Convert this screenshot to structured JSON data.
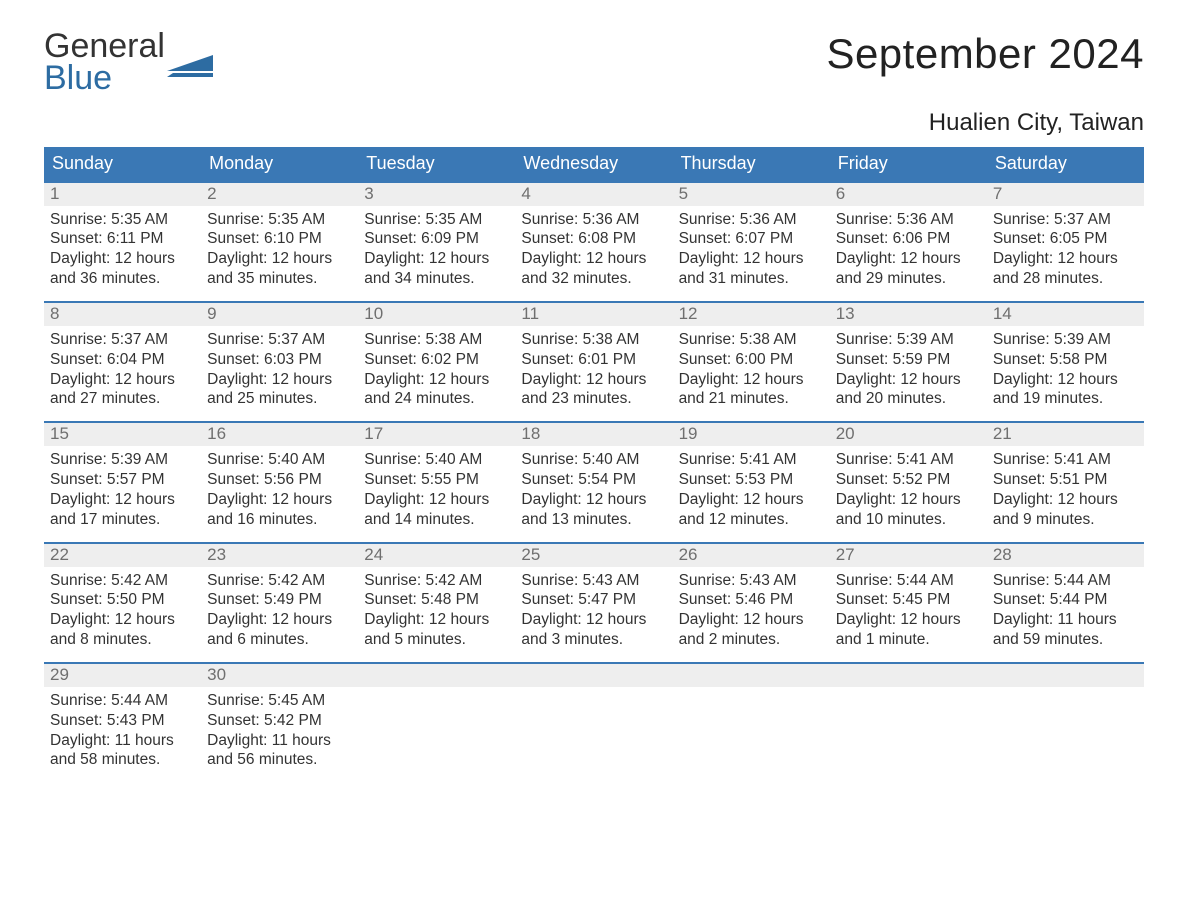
{
  "logo": {
    "line1": "General",
    "line2": "Blue",
    "accent_color": "#2d6ca2"
  },
  "title": "September 2024",
  "location": "Hualien City, Taiwan",
  "colors": {
    "header_bg": "#3a78b5",
    "header_text": "#ffffff",
    "daynum_bg": "#eeeeee",
    "daynum_text": "#6f6f6f",
    "body_text": "#333333",
    "row_border": "#3a78b5",
    "page_bg": "#ffffff"
  },
  "weekdays": [
    "Sunday",
    "Monday",
    "Tuesday",
    "Wednesday",
    "Thursday",
    "Friday",
    "Saturday"
  ],
  "weeks": [
    [
      {
        "n": "1",
        "sunrise": "Sunrise: 5:35 AM",
        "sunset": "Sunset: 6:11 PM",
        "d1": "Daylight: 12 hours",
        "d2": "and 36 minutes."
      },
      {
        "n": "2",
        "sunrise": "Sunrise: 5:35 AM",
        "sunset": "Sunset: 6:10 PM",
        "d1": "Daylight: 12 hours",
        "d2": "and 35 minutes."
      },
      {
        "n": "3",
        "sunrise": "Sunrise: 5:35 AM",
        "sunset": "Sunset: 6:09 PM",
        "d1": "Daylight: 12 hours",
        "d2": "and 34 minutes."
      },
      {
        "n": "4",
        "sunrise": "Sunrise: 5:36 AM",
        "sunset": "Sunset: 6:08 PM",
        "d1": "Daylight: 12 hours",
        "d2": "and 32 minutes."
      },
      {
        "n": "5",
        "sunrise": "Sunrise: 5:36 AM",
        "sunset": "Sunset: 6:07 PM",
        "d1": "Daylight: 12 hours",
        "d2": "and 31 minutes."
      },
      {
        "n": "6",
        "sunrise": "Sunrise: 5:36 AM",
        "sunset": "Sunset: 6:06 PM",
        "d1": "Daylight: 12 hours",
        "d2": "and 29 minutes."
      },
      {
        "n": "7",
        "sunrise": "Sunrise: 5:37 AM",
        "sunset": "Sunset: 6:05 PM",
        "d1": "Daylight: 12 hours",
        "d2": "and 28 minutes."
      }
    ],
    [
      {
        "n": "8",
        "sunrise": "Sunrise: 5:37 AM",
        "sunset": "Sunset: 6:04 PM",
        "d1": "Daylight: 12 hours",
        "d2": "and 27 minutes."
      },
      {
        "n": "9",
        "sunrise": "Sunrise: 5:37 AM",
        "sunset": "Sunset: 6:03 PM",
        "d1": "Daylight: 12 hours",
        "d2": "and 25 minutes."
      },
      {
        "n": "10",
        "sunrise": "Sunrise: 5:38 AM",
        "sunset": "Sunset: 6:02 PM",
        "d1": "Daylight: 12 hours",
        "d2": "and 24 minutes."
      },
      {
        "n": "11",
        "sunrise": "Sunrise: 5:38 AM",
        "sunset": "Sunset: 6:01 PM",
        "d1": "Daylight: 12 hours",
        "d2": "and 23 minutes."
      },
      {
        "n": "12",
        "sunrise": "Sunrise: 5:38 AM",
        "sunset": "Sunset: 6:00 PM",
        "d1": "Daylight: 12 hours",
        "d2": "and 21 minutes."
      },
      {
        "n": "13",
        "sunrise": "Sunrise: 5:39 AM",
        "sunset": "Sunset: 5:59 PM",
        "d1": "Daylight: 12 hours",
        "d2": "and 20 minutes."
      },
      {
        "n": "14",
        "sunrise": "Sunrise: 5:39 AM",
        "sunset": "Sunset: 5:58 PM",
        "d1": "Daylight: 12 hours",
        "d2": "and 19 minutes."
      }
    ],
    [
      {
        "n": "15",
        "sunrise": "Sunrise: 5:39 AM",
        "sunset": "Sunset: 5:57 PM",
        "d1": "Daylight: 12 hours",
        "d2": "and 17 minutes."
      },
      {
        "n": "16",
        "sunrise": "Sunrise: 5:40 AM",
        "sunset": "Sunset: 5:56 PM",
        "d1": "Daylight: 12 hours",
        "d2": "and 16 minutes."
      },
      {
        "n": "17",
        "sunrise": "Sunrise: 5:40 AM",
        "sunset": "Sunset: 5:55 PM",
        "d1": "Daylight: 12 hours",
        "d2": "and 14 minutes."
      },
      {
        "n": "18",
        "sunrise": "Sunrise: 5:40 AM",
        "sunset": "Sunset: 5:54 PM",
        "d1": "Daylight: 12 hours",
        "d2": "and 13 minutes."
      },
      {
        "n": "19",
        "sunrise": "Sunrise: 5:41 AM",
        "sunset": "Sunset: 5:53 PM",
        "d1": "Daylight: 12 hours",
        "d2": "and 12 minutes."
      },
      {
        "n": "20",
        "sunrise": "Sunrise: 5:41 AM",
        "sunset": "Sunset: 5:52 PM",
        "d1": "Daylight: 12 hours",
        "d2": "and 10 minutes."
      },
      {
        "n": "21",
        "sunrise": "Sunrise: 5:41 AM",
        "sunset": "Sunset: 5:51 PM",
        "d1": "Daylight: 12 hours",
        "d2": "and 9 minutes."
      }
    ],
    [
      {
        "n": "22",
        "sunrise": "Sunrise: 5:42 AM",
        "sunset": "Sunset: 5:50 PM",
        "d1": "Daylight: 12 hours",
        "d2": "and 8 minutes."
      },
      {
        "n": "23",
        "sunrise": "Sunrise: 5:42 AM",
        "sunset": "Sunset: 5:49 PM",
        "d1": "Daylight: 12 hours",
        "d2": "and 6 minutes."
      },
      {
        "n": "24",
        "sunrise": "Sunrise: 5:42 AM",
        "sunset": "Sunset: 5:48 PM",
        "d1": "Daylight: 12 hours",
        "d2": "and 5 minutes."
      },
      {
        "n": "25",
        "sunrise": "Sunrise: 5:43 AM",
        "sunset": "Sunset: 5:47 PM",
        "d1": "Daylight: 12 hours",
        "d2": "and 3 minutes."
      },
      {
        "n": "26",
        "sunrise": "Sunrise: 5:43 AM",
        "sunset": "Sunset: 5:46 PM",
        "d1": "Daylight: 12 hours",
        "d2": "and 2 minutes."
      },
      {
        "n": "27",
        "sunrise": "Sunrise: 5:44 AM",
        "sunset": "Sunset: 5:45 PM",
        "d1": "Daylight: 12 hours",
        "d2": "and 1 minute."
      },
      {
        "n": "28",
        "sunrise": "Sunrise: 5:44 AM",
        "sunset": "Sunset: 5:44 PM",
        "d1": "Daylight: 11 hours",
        "d2": "and 59 minutes."
      }
    ],
    [
      {
        "n": "29",
        "sunrise": "Sunrise: 5:44 AM",
        "sunset": "Sunset: 5:43 PM",
        "d1": "Daylight: 11 hours",
        "d2": "and 58 minutes."
      },
      {
        "n": "30",
        "sunrise": "Sunrise: 5:45 AM",
        "sunset": "Sunset: 5:42 PM",
        "d1": "Daylight: 11 hours",
        "d2": "and 56 minutes."
      },
      null,
      null,
      null,
      null,
      null
    ]
  ]
}
